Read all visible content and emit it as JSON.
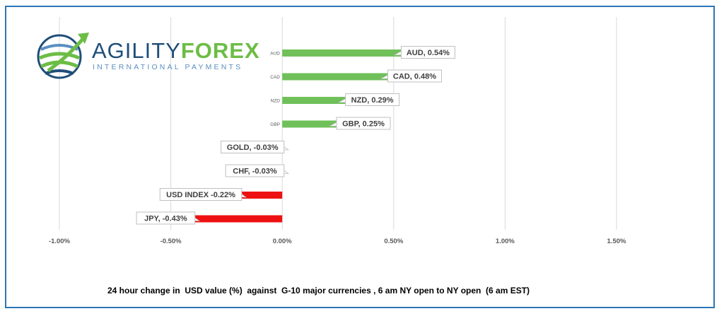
{
  "logo": {
    "name_part1": "AGILITY",
    "name_part2": "FOREX",
    "tagline": "INTERNATIONAL PAYMENTS",
    "colors": {
      "navy": "#1f4e79",
      "green": "#6cbd45",
      "light_blue": "#5a8fc0"
    }
  },
  "caption": "24 hour change in  USD value (%)  against  G-10 major currencies , 6 am NY open to NY open  (6 am EST)",
  "chart_data": {
    "type": "bar",
    "orientation": "horizontal",
    "categories": [
      "AUD",
      "CAD",
      "NZD",
      "GBP",
      "GOLD",
      "CHF",
      "USD INDEX",
      "JPY"
    ],
    "values": [
      0.54,
      0.48,
      0.29,
      0.25,
      -0.03,
      -0.03,
      -0.22,
      -0.43
    ],
    "unit": "%",
    "category_tick_labels": [
      "AUD",
      "CAD",
      "NZD",
      "GBP",
      "",
      "",
      "",
      ""
    ],
    "data_labels": [
      "AUD, 0.54%",
      "CAD, 0.48%",
      "NZD, 0.29%",
      "GBP, 0.25%",
      "GOLD, -0.03%",
      "CHF, -0.03%",
      "USD INDEX -0.22%",
      "JPY, -0.43%"
    ],
    "xlim": [
      -1.0,
      1.5
    ],
    "x_ticks": [
      -1.0,
      -0.5,
      0.0,
      0.5,
      1.0,
      1.5
    ],
    "x_tick_labels": [
      "-1.00%",
      "-0.50%",
      "0.00%",
      "0.50%",
      "1.00%",
      "1.50%"
    ],
    "grid": "vertical",
    "colors": {
      "positive": "#70c05a",
      "negative": "#ee1111",
      "grid": "#d9d9d9"
    }
  }
}
